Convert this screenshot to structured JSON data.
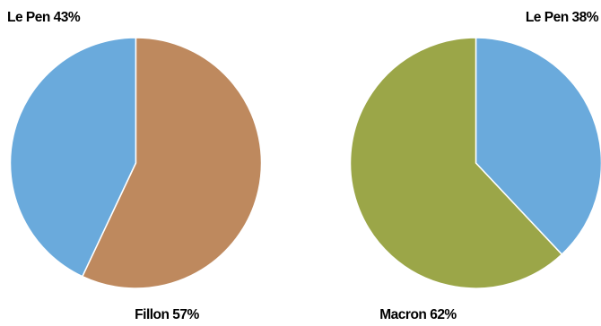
{
  "chart_data": [
    {
      "type": "pie",
      "slices": [
        {
          "name": "Le Pen",
          "value": 43,
          "label": "Le Pen 43%",
          "color": "#6AAADC"
        },
        {
          "name": "Fillon",
          "value": 57,
          "label": "Fillon 57%",
          "color": "#BE895E"
        }
      ]
    },
    {
      "type": "pie",
      "slices": [
        {
          "name": "Le Pen",
          "value": 38,
          "label": "Le Pen 38%",
          "color": "#6AAADC"
        },
        {
          "name": "Macron",
          "value": 62,
          "label": "Macron 62%",
          "color": "#9BA648"
        }
      ]
    }
  ]
}
